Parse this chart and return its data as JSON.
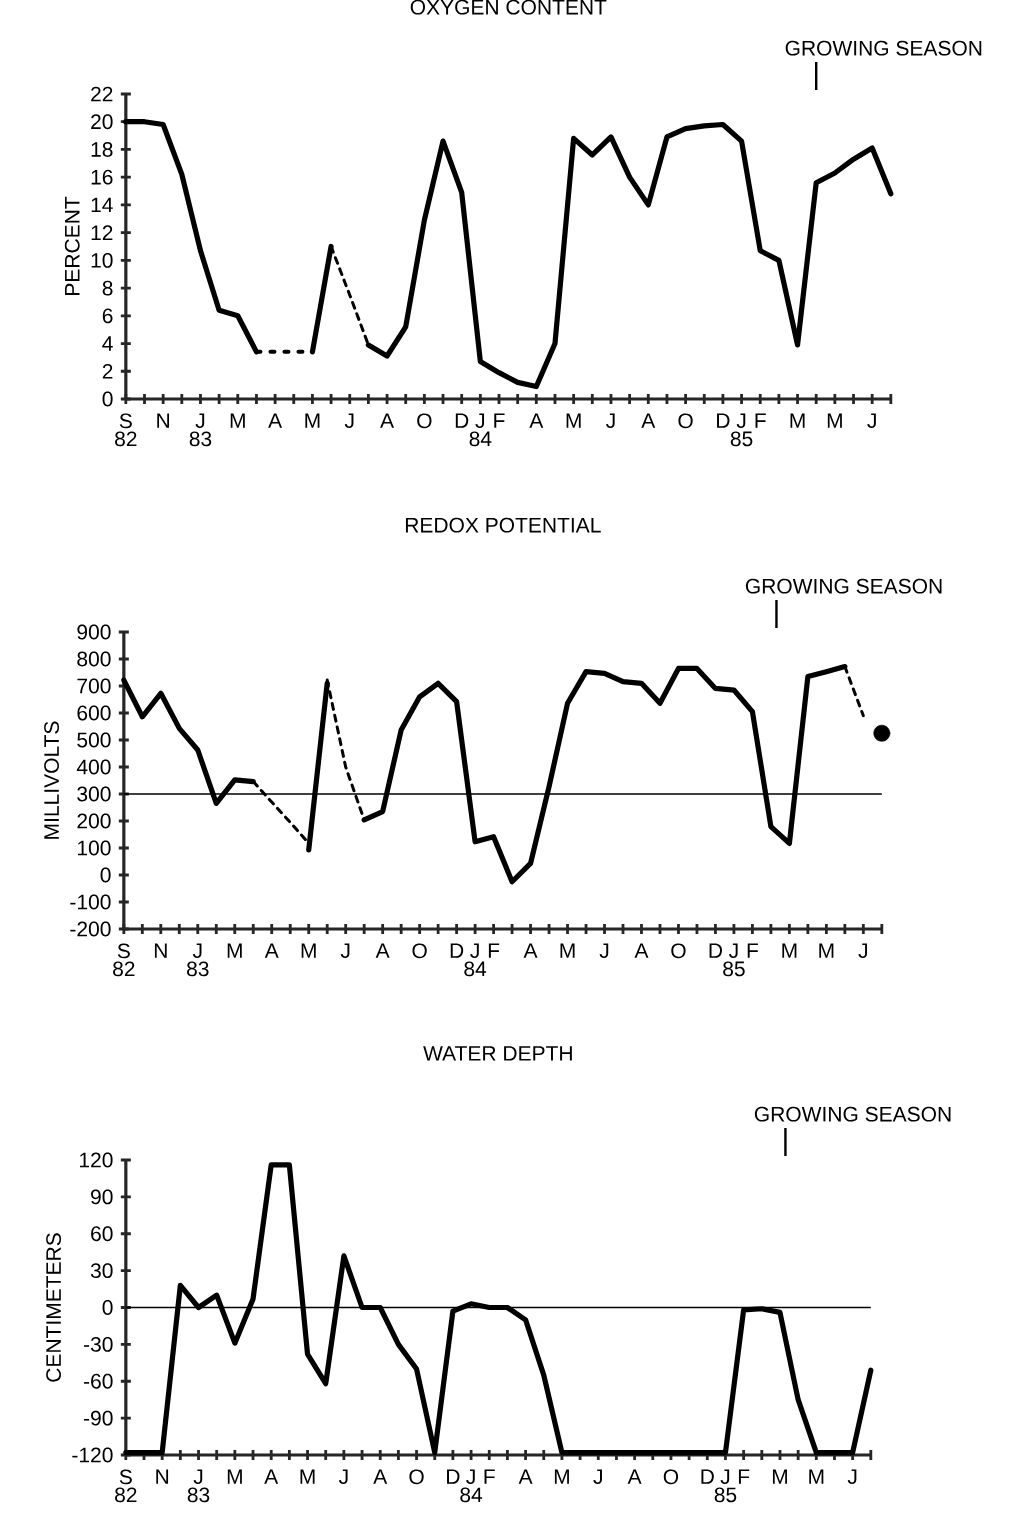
{
  "chart_data": [
    {
      "type": "line",
      "title": "OXYGEN CONTENT",
      "ylabel": "PERCENT",
      "ylim": [
        0,
        22
      ],
      "yticks": [
        0,
        2,
        4,
        6,
        8,
        10,
        12,
        14,
        16,
        18,
        20,
        22
      ],
      "categories": [
        "S",
        null,
        "N",
        null,
        "J",
        null,
        "M",
        null,
        "A",
        null,
        "M",
        null,
        "J",
        null,
        "A",
        null,
        "O",
        null,
        "D",
        "J",
        "F",
        null,
        "A",
        null,
        "M",
        null,
        "J",
        null,
        "A",
        null,
        "O",
        null,
        "D",
        "J",
        "F",
        null,
        "M",
        null,
        "M",
        null,
        "J",
        null
      ],
      "series": [
        {
          "color": "#000000",
          "line_style": "solid",
          "values": [
            20.0,
            20.0,
            19.8,
            16.2,
            10.7,
            6.4,
            6.0,
            3.4,
            null,
            null,
            null,
            null,
            null,
            null,
            null,
            null,
            null,
            null,
            null,
            null,
            null,
            null,
            null,
            null,
            null,
            null,
            null,
            null,
            null,
            null,
            null,
            null,
            null,
            null,
            null,
            null,
            null,
            null,
            null,
            null,
            null,
            null
          ]
        },
        {
          "color": "#000000",
          "line_style": "dotted",
          "values": [
            null,
            null,
            null,
            null,
            null,
            null,
            null,
            3.4,
            3.4,
            3.4,
            3.4,
            null,
            null,
            null,
            null,
            null,
            null,
            null,
            null,
            null,
            null,
            null,
            null,
            null,
            null,
            null,
            null,
            null,
            null,
            null,
            null,
            null,
            null,
            null,
            null,
            null,
            null,
            null,
            null,
            null,
            null,
            null
          ]
        },
        {
          "color": "#000000",
          "line_style": "solid",
          "values": [
            null,
            null,
            null,
            null,
            null,
            null,
            null,
            null,
            null,
            null,
            3.4,
            11.0,
            null,
            null,
            null,
            null,
            null,
            null,
            null,
            null,
            null,
            null,
            null,
            null,
            null,
            null,
            null,
            null,
            null,
            null,
            null,
            null,
            null,
            null,
            null,
            null,
            null,
            null,
            null,
            null,
            null,
            null
          ]
        },
        {
          "color": "#000000",
          "line_style": "dashed",
          "values": [
            null,
            null,
            null,
            null,
            null,
            null,
            null,
            null,
            null,
            null,
            null,
            11.0,
            7.5,
            3.9,
            null,
            null,
            null,
            null,
            null,
            null,
            null,
            null,
            null,
            null,
            null,
            null,
            null,
            null,
            null,
            null,
            null,
            null,
            null,
            null,
            null,
            null,
            null,
            null,
            null,
            null,
            null,
            null
          ]
        },
        {
          "color": "#000000",
          "line_style": "solid",
          "values": [
            null,
            null,
            null,
            null,
            null,
            null,
            null,
            null,
            null,
            null,
            null,
            null,
            null,
            3.9,
            3.1,
            5.2,
            12.9,
            18.6,
            14.9,
            2.7,
            1.9,
            1.2,
            0.9,
            4.0,
            18.8,
            17.6,
            18.9,
            16.0,
            14.0,
            18.9,
            19.5,
            19.7,
            19.8,
            18.6,
            10.7,
            10.0,
            3.9,
            15.6,
            16.3,
            17.3,
            18.1,
            14.8
          ]
        }
      ],
      "annotations": [
        "82",
        "83",
        "84",
        "85",
        "GROWING SEASON"
      ]
    },
    {
      "type": "line",
      "title": "REDOX POTENTIAL",
      "ylabel": "MILLIVOLTS",
      "ylim": [
        -200,
        900
      ],
      "yticks": [
        -200,
        -100,
        0,
        100,
        200,
        300,
        400,
        500,
        600,
        700,
        800,
        900
      ],
      "categories": [
        "S",
        null,
        "N",
        null,
        "J",
        null,
        "M",
        null,
        "A",
        null,
        "M",
        null,
        "J",
        null,
        "A",
        null,
        "O",
        null,
        "D",
        "J",
        "F",
        null,
        "A",
        null,
        "M",
        null,
        "J",
        null,
        "A",
        null,
        "O",
        null,
        "D",
        "J",
        "F",
        null,
        "M",
        null,
        "M",
        null,
        "J",
        null
      ],
      "series": [
        {
          "color": "#000000",
          "line_style": "solid",
          "values": [
            722,
            586,
            673,
            543,
            463,
            265,
            352,
            346,
            null,
            null,
            null,
            null,
            null,
            null,
            null,
            null,
            null,
            null,
            null,
            null,
            null,
            null,
            null,
            null,
            null,
            null,
            null,
            null,
            null,
            null,
            null,
            null,
            null,
            null,
            null,
            null,
            null,
            null,
            null,
            null,
            null,
            null
          ]
        },
        {
          "color": "#000000",
          "line_style": "dashed",
          "values": [
            null,
            null,
            null,
            null,
            null,
            null,
            null,
            346,
            270,
            195,
            117,
            null,
            null,
            null,
            null,
            null,
            null,
            null,
            null,
            null,
            null,
            null,
            null,
            null,
            null,
            null,
            null,
            null,
            null,
            null,
            null,
            null,
            null,
            null,
            null,
            null,
            null,
            null,
            null,
            null,
            null,
            null
          ]
        },
        {
          "color": "#000000",
          "line_style": "solid",
          "values": [
            null,
            null,
            null,
            null,
            null,
            null,
            null,
            null,
            null,
            null,
            93,
            710,
            null,
            null,
            null,
            null,
            null,
            null,
            null,
            null,
            null,
            null,
            null,
            null,
            null,
            null,
            null,
            null,
            null,
            null,
            null,
            null,
            null,
            null,
            null,
            null,
            null,
            null,
            null,
            null,
            null,
            null
          ]
        },
        {
          "color": "#000000",
          "line_style": "dashed",
          "values": [
            null,
            null,
            null,
            null,
            null,
            null,
            null,
            null,
            null,
            null,
            null,
            722,
            400,
            204,
            null,
            null,
            null,
            null,
            null,
            null,
            null,
            null,
            null,
            null,
            null,
            null,
            null,
            null,
            null,
            null,
            null,
            null,
            null,
            null,
            null,
            null,
            null,
            null,
            null,
            null,
            null,
            null
          ]
        },
        {
          "color": "#000000",
          "line_style": "solid",
          "values": [
            null,
            null,
            null,
            null,
            null,
            null,
            null,
            null,
            null,
            null,
            null,
            null,
            null,
            204,
            235,
            537,
            660,
            710,
            642,
            123,
            142,
            -25,
            43,
            327,
            636,
            753,
            747,
            716,
            710,
            636,
            765,
            765,
            691,
            685,
            605,
            179,
            117,
            735,
            753,
            772,
            null,
            null
          ]
        },
        {
          "color": "#000000",
          "line_style": "dashed",
          "values": [
            null,
            null,
            null,
            null,
            null,
            null,
            null,
            null,
            null,
            null,
            null,
            null,
            null,
            null,
            null,
            null,
            null,
            null,
            null,
            null,
            null,
            null,
            null,
            null,
            null,
            null,
            null,
            null,
            null,
            null,
            null,
            null,
            null,
            null,
            null,
            null,
            null,
            null,
            null,
            772,
            590,
            null
          ]
        },
        {
          "color": "#000000",
          "type": "scatter",
          "marker": "circle",
          "values": [
            null,
            null,
            null,
            null,
            null,
            null,
            null,
            null,
            null,
            null,
            null,
            null,
            null,
            null,
            null,
            null,
            null,
            null,
            null,
            null,
            null,
            null,
            null,
            null,
            null,
            null,
            null,
            null,
            null,
            null,
            null,
            null,
            null,
            null,
            null,
            null,
            null,
            null,
            null,
            null,
            null,
            525
          ]
        }
      ],
      "ref_lines": [
        {
          "axis": "y",
          "value": 300
        }
      ],
      "annotations": [
        "82",
        "83",
        "84",
        "85",
        "GROWING SEASON"
      ]
    },
    {
      "type": "line",
      "title": "WATER DEPTH",
      "ylabel": "CENTIMETERS",
      "ylim": [
        -120,
        120
      ],
      "yticks": [
        -120,
        -90,
        -60,
        -30,
        0,
        30,
        60,
        90,
        120
      ],
      "categories": [
        "S",
        null,
        "N",
        null,
        "J",
        null,
        "M",
        null,
        "A",
        null,
        "M",
        null,
        "J",
        null,
        "A",
        null,
        "O",
        null,
        "D",
        "J",
        "F",
        null,
        "A",
        null,
        "M",
        null,
        "J",
        null,
        "A",
        null,
        "O",
        null,
        "D",
        "J",
        "F",
        null,
        "M",
        null,
        "M",
        null,
        "J",
        null
      ],
      "series": [
        {
          "color": "#000000",
          "line_style": "solid",
          "values": [
            -118,
            -118,
            -118,
            18,
            0,
            10,
            -29,
            7,
            116,
            116,
            -38,
            -62,
            42,
            0,
            0,
            -30,
            -50,
            -118,
            -3,
            3,
            0,
            0,
            -10,
            -55,
            -118,
            -118,
            -118,
            -118,
            -118,
            -118,
            -118,
            -118,
            -118,
            -118,
            -2,
            -1,
            -4,
            -75,
            -118,
            -118,
            -118,
            -51
          ]
        }
      ],
      "ref_lines": [
        {
          "axis": "y",
          "value": 0
        }
      ],
      "annotations": [
        "82",
        "83",
        "84",
        "85",
        "GROWING SEASON"
      ]
    }
  ]
}
